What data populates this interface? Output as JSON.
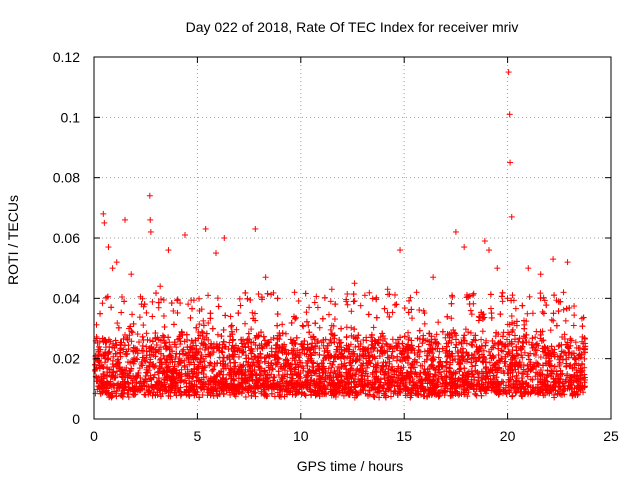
{
  "chart_data": {
    "type": "scatter",
    "title": "Day 022 of 2018, Rate Of TEC Index for receiver mriv",
    "xlabel": "GPS time / hours",
    "ylabel": "ROTI / TECUs",
    "xlim": [
      0,
      25
    ],
    "ylim": [
      0,
      0.12
    ],
    "xticks": [
      0,
      5,
      10,
      15,
      20,
      25
    ],
    "yticks": [
      0,
      0.02,
      0.04,
      0.06,
      0.08,
      0.1,
      0.12
    ],
    "xtick_labels": [
      "0",
      "5",
      "10",
      "15",
      "20",
      "25"
    ],
    "ytick_labels": [
      "0",
      "0.02",
      "0.04",
      "0.06",
      "0.08",
      "0.1",
      "0.12"
    ],
    "grid": true,
    "marker": "+",
    "series": [
      {
        "name": "ROTI",
        "color": "#ff0000",
        "x": [
          20.05,
          20.1,
          20.12,
          20.2,
          2.7,
          2.72,
          0.45,
          0.5,
          1.5,
          2.75,
          5.4,
          7.8,
          17.5,
          18.9,
          4.4,
          6.3,
          3.6,
          14.8,
          16.4,
          1.1,
          0.9,
          11.5,
          12.6,
          9.7,
          13.1,
          14.2,
          19.5,
          21.0,
          22.2,
          22.9,
          0.7,
          1.8,
          3.2,
          5.9,
          8.3,
          10.4,
          12.2,
          15.6,
          17.9,
          19.1,
          21.6,
          23.2
        ],
        "y": [
          0.115,
          0.101,
          0.085,
          0.067,
          0.074,
          0.066,
          0.068,
          0.065,
          0.066,
          0.062,
          0.063,
          0.063,
          0.062,
          0.059,
          0.061,
          0.06,
          0.056,
          0.056,
          0.047,
          0.052,
          0.05,
          0.043,
          0.045,
          0.042,
          0.041,
          0.043,
          0.05,
          0.05,
          0.053,
          0.052,
          0.057,
          0.048,
          0.044,
          0.055,
          0.047,
          0.037,
          0.039,
          0.042,
          0.057,
          0.056,
          0.048,
          0.031
        ]
      }
    ]
  }
}
